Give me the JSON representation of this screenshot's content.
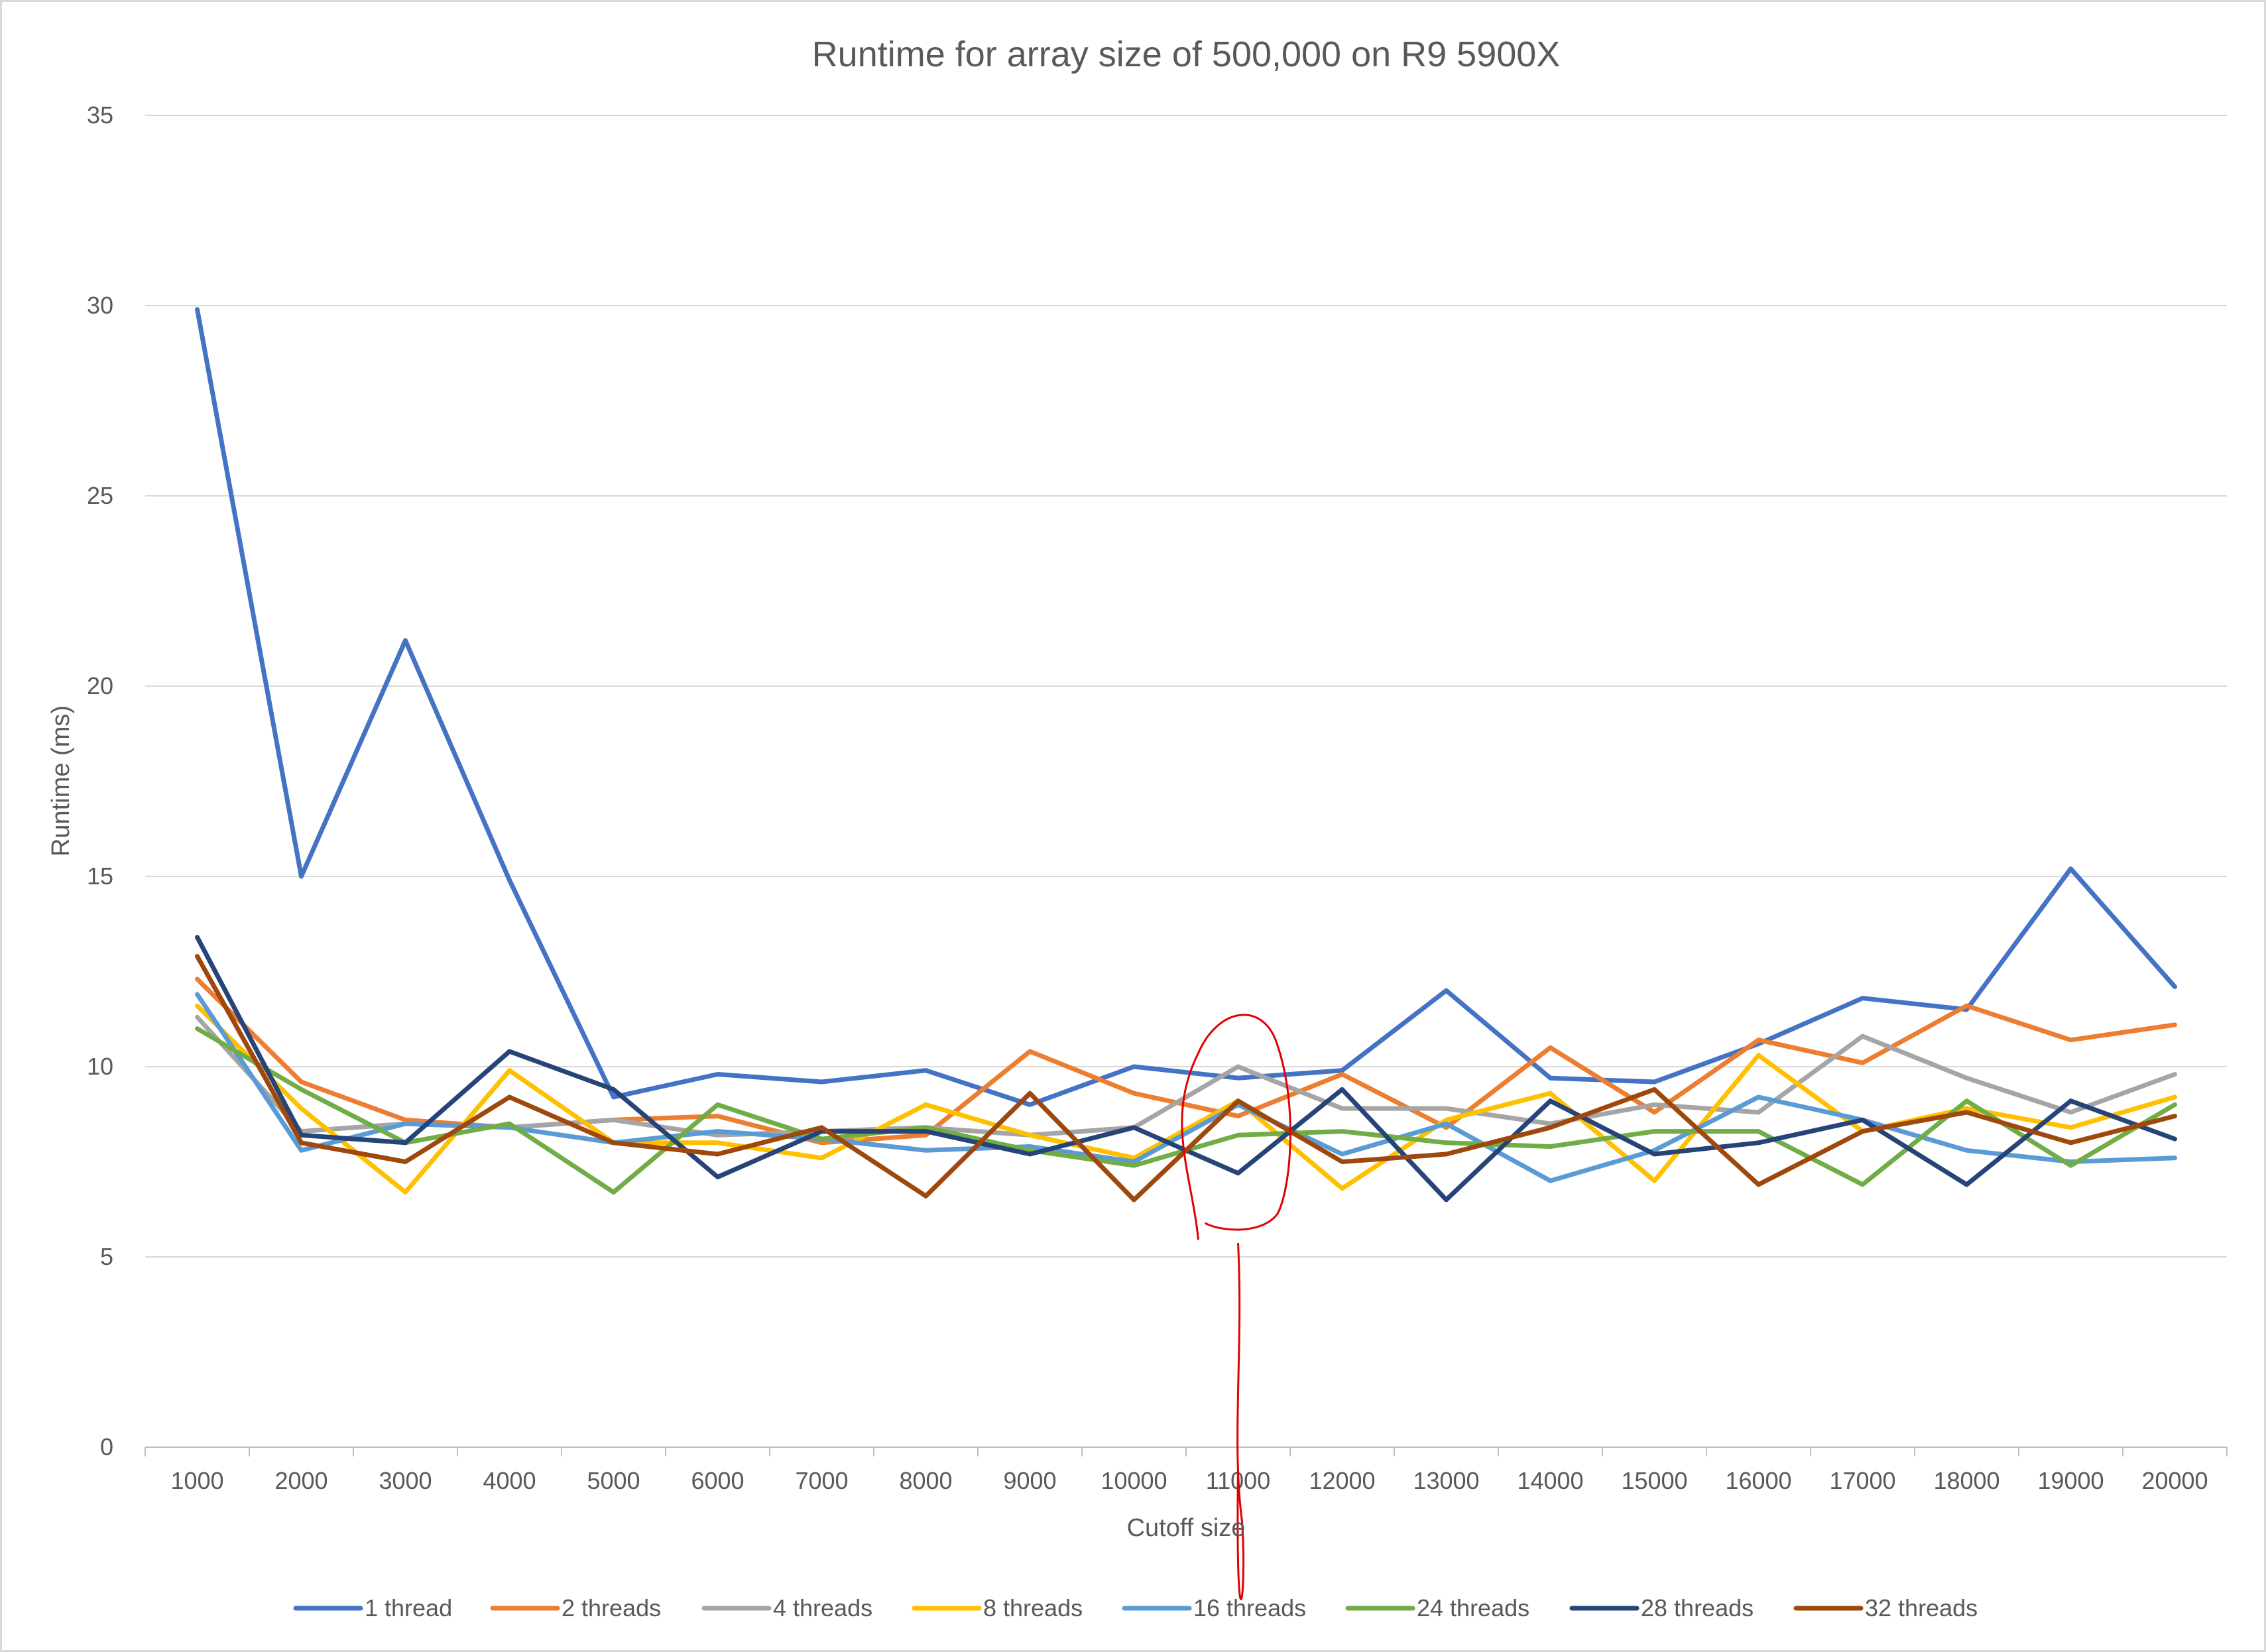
{
  "chart_data": {
    "type": "line",
    "title": "Runtime for array size of 500,000 on R9 5900X",
    "xlabel": "Cutoff size",
    "ylabel": "Runtime (ms)",
    "ylim": [
      0,
      35
    ],
    "y_ticks": [
      0,
      5,
      10,
      15,
      20,
      25,
      30,
      35
    ],
    "grid": "horizontal",
    "legend_position": "bottom",
    "categories": [
      "1000",
      "2000",
      "3000",
      "4000",
      "5000",
      "6000",
      "7000",
      "8000",
      "9000",
      "10000",
      "11000",
      "12000",
      "13000",
      "14000",
      "15000",
      "16000",
      "17000",
      "18000",
      "19000",
      "20000"
    ],
    "series": [
      {
        "name": "1 thread",
        "color": "#4472C4",
        "values": [
          29.9,
          15.0,
          21.2,
          14.9,
          9.2,
          9.8,
          9.6,
          9.9,
          9.0,
          10.0,
          9.7,
          9.9,
          12.0,
          9.7,
          9.6,
          10.6,
          11.8,
          11.5,
          15.2,
          12.1
        ]
      },
      {
        "name": "2 threads",
        "color": "#ED7D31",
        "values": [
          12.3,
          9.6,
          8.6,
          8.4,
          8.6,
          8.7,
          8.0,
          8.2,
          10.4,
          9.3,
          8.7,
          9.8,
          8.4,
          10.5,
          8.8,
          10.7,
          10.1,
          11.6,
          10.7,
          11.1
        ]
      },
      {
        "name": "4 threads",
        "color": "#A5A5A5",
        "values": [
          11.3,
          8.3,
          8.5,
          8.4,
          8.6,
          8.2,
          8.3,
          8.4,
          8.2,
          8.4,
          10.0,
          8.9,
          8.9,
          8.5,
          9.0,
          8.8,
          10.8,
          9.7,
          8.8,
          9.8
        ]
      },
      {
        "name": "8 threads",
        "color": "#FFC000",
        "values": [
          11.6,
          8.9,
          6.7,
          9.9,
          8.0,
          8.0,
          7.6,
          9.0,
          8.2,
          7.6,
          9.1,
          6.8,
          8.6,
          9.3,
          7.0,
          10.3,
          8.3,
          8.9,
          8.4,
          9.2
        ]
      },
      {
        "name": "16 threads",
        "color": "#5B9BD5",
        "values": [
          11.9,
          7.8,
          8.5,
          8.4,
          8.0,
          8.3,
          8.1,
          7.8,
          7.9,
          7.5,
          9.0,
          7.7,
          8.5,
          7.0,
          7.8,
          9.2,
          8.6,
          7.8,
          7.5,
          7.6
        ]
      },
      {
        "name": "24 threads",
        "color": "#70AD47",
        "values": [
          11.0,
          9.4,
          8.0,
          8.5,
          6.7,
          9.0,
          8.1,
          8.4,
          7.8,
          7.4,
          8.2,
          8.3,
          8.0,
          7.9,
          8.3,
          8.3,
          6.9,
          9.1,
          7.4,
          9.0
        ]
      },
      {
        "name": "28 threads",
        "color": "#264478",
        "values": [
          13.4,
          8.2,
          8.0,
          10.4,
          9.4,
          7.1,
          8.3,
          8.3,
          7.7,
          8.4,
          7.2,
          9.4,
          6.5,
          9.1,
          7.7,
          8.0,
          8.6,
          6.9,
          9.1,
          8.1
        ]
      },
      {
        "name": "32 threads",
        "color": "#9E480E",
        "values": [
          12.9,
          8.0,
          7.5,
          9.2,
          8.0,
          7.7,
          8.4,
          6.6,
          9.3,
          6.5,
          9.1,
          7.5,
          7.7,
          8.4,
          9.4,
          6.9,
          8.3,
          8.8,
          8.0,
          8.7
        ]
      }
    ],
    "annotations": [
      {
        "type": "hand-drawn-circle-and-arrow",
        "color": "#E00000",
        "x": "11000",
        "y_range": [
          5.8,
          11.4
        ],
        "points_to": "11000"
      }
    ]
  }
}
